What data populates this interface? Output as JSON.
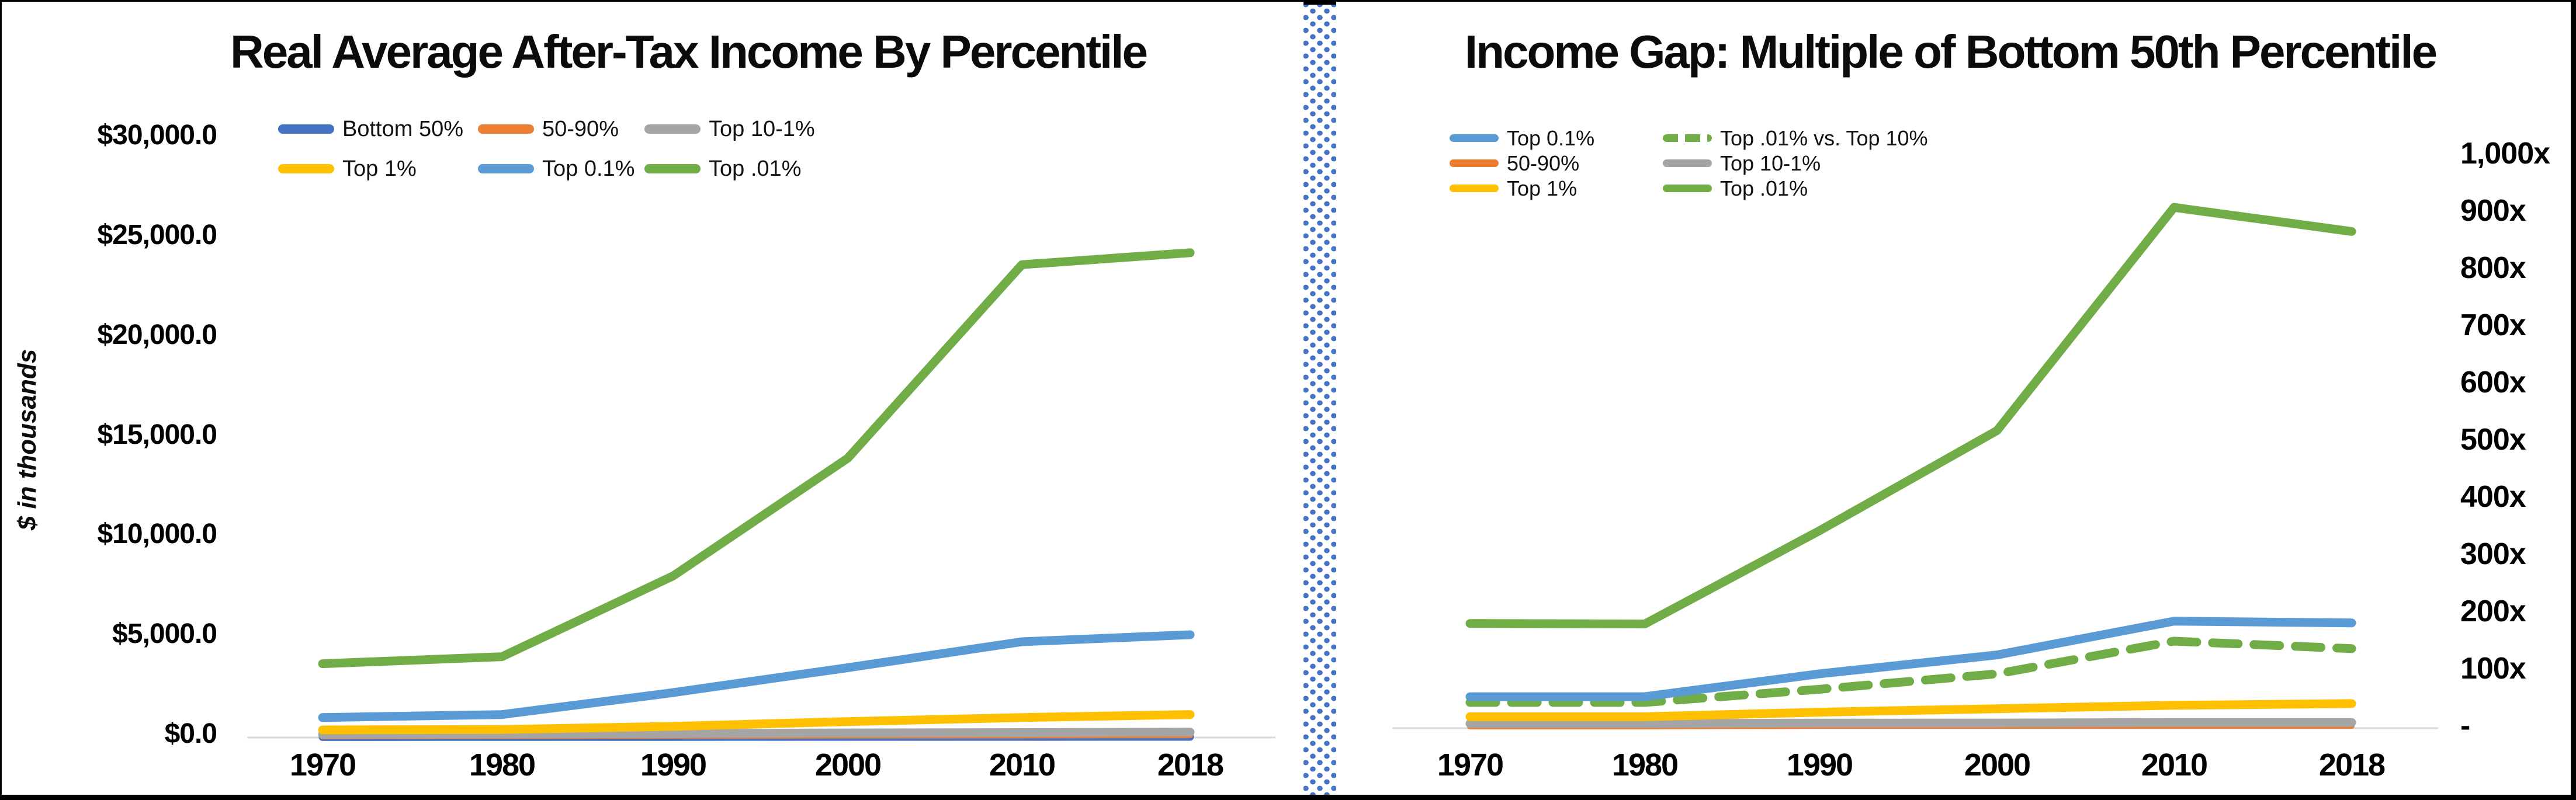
{
  "page": {
    "background": "#FFFFFF",
    "frame_color": "#000000"
  },
  "divider": {
    "dot_color": "#4472C4",
    "style": "dotted-strip"
  },
  "chart_data": [
    {
      "type": "line",
      "title": "Real Average After-Tax Income By Percentile",
      "xlabel": "",
      "ylabel": "$ in thousands",
      "categories": [
        "1970",
        "1980",
        "1990",
        "2000",
        "2010",
        "2018"
      ],
      "y_ticks": [
        "$30,000.0",
        "$25,000.0",
        "$20,000.0",
        "$15,000.0",
        "$10,000.0",
        "$5,000.0",
        "$0.0"
      ],
      "y_tick_values": [
        30000,
        25000,
        20000,
        15000,
        10000,
        5000,
        0
      ],
      "ylim": [
        0,
        30000
      ],
      "y_axis_side": "left",
      "grid": "zero-baseline-only",
      "legend_position": "top-left",
      "legend_columns": 3,
      "series": [
        {
          "name": "Bottom 50%",
          "color": "#4472C4",
          "dashed": false,
          "width": 13,
          "values": [
            19,
            22,
            23,
            27,
            26,
            28
          ]
        },
        {
          "name": "50-90%",
          "color": "#ED7D31",
          "dashed": false,
          "width": 10,
          "values": [
            60,
            70,
            80,
            95,
            100,
            110
          ]
        },
        {
          "name": "Top 10-1%",
          "color": "#A5A5A5",
          "dashed": false,
          "width": 15,
          "values": [
            150,
            170,
            200,
            230,
            250,
            270
          ]
        },
        {
          "name": "Top 1%",
          "color": "#FFC000",
          "dashed": false,
          "width": 15,
          "values": [
            380,
            400,
            560,
            800,
            1000,
            1150
          ]
        },
        {
          "name": "Top 0.1%",
          "color": "#5B9BD5",
          "dashed": false,
          "width": 15,
          "values": [
            1000,
            1150,
            2250,
            3500,
            4800,
            5150
          ]
        },
        {
          "name": "Top .01%",
          "color": "#70AD47",
          "dashed": false,
          "width": 15,
          "values": [
            3700,
            4050,
            8100,
            14000,
            23700,
            24300
          ]
        }
      ],
      "legend_order": [
        0,
        1,
        2,
        3,
        4,
        5
      ],
      "draw_order": [
        0,
        1,
        2,
        3,
        4,
        5
      ]
    },
    {
      "type": "line",
      "title": "Income Gap: Multiple of Bottom 50th Percentile",
      "xlabel": "",
      "ylabel": "",
      "categories": [
        "1970",
        "1980",
        "1990",
        "2000",
        "2010",
        "2018"
      ],
      "y_ticks": [
        "1,000x",
        "900x",
        "800x",
        "700x",
        "600x",
        "500x",
        "400x",
        "300x",
        "200x",
        "100x",
        "-"
      ],
      "y_tick_values": [
        1000,
        900,
        800,
        700,
        600,
        500,
        400,
        300,
        200,
        100,
        0
      ],
      "ylim": [
        0,
        1000
      ],
      "y_axis_side": "right",
      "grid": "zero-baseline-only",
      "legend_position": "top-left",
      "legend_columns": 2,
      "series": [
        {
          "name": "Top 0.1%",
          "color": "#5B9BD5",
          "dashed": false,
          "width": 15,
          "values": [
            55,
            55,
            95,
            128,
            187,
            184
          ]
        },
        {
          "name": "Top .01% vs. Top 10%",
          "color": "#70AD47",
          "dashed": true,
          "width": 15,
          "values": [
            45,
            45,
            68,
            95,
            152,
            139
          ]
        },
        {
          "name": "50-90%",
          "color": "#ED7D31",
          "dashed": false,
          "width": 10,
          "values": [
            3,
            3,
            4,
            4,
            4,
            4
          ]
        },
        {
          "name": "Top 10-1%",
          "color": "#A5A5A5",
          "dashed": false,
          "width": 15,
          "values": [
            8,
            8,
            9,
            9,
            10,
            10
          ]
        },
        {
          "name": "Top 1%",
          "color": "#FFC000",
          "dashed": false,
          "width": 15,
          "values": [
            20,
            20,
            28,
            34,
            40,
            43
          ]
        },
        {
          "name": "Top .01%",
          "color": "#70AD47",
          "dashed": false,
          "width": 15,
          "values": [
            183,
            182,
            345,
            520,
            910,
            868
          ]
        }
      ],
      "legend_order": [
        0,
        1,
        2,
        3,
        4,
        5
      ],
      "draw_order": [
        2,
        3,
        4,
        1,
        0,
        5
      ]
    }
  ]
}
